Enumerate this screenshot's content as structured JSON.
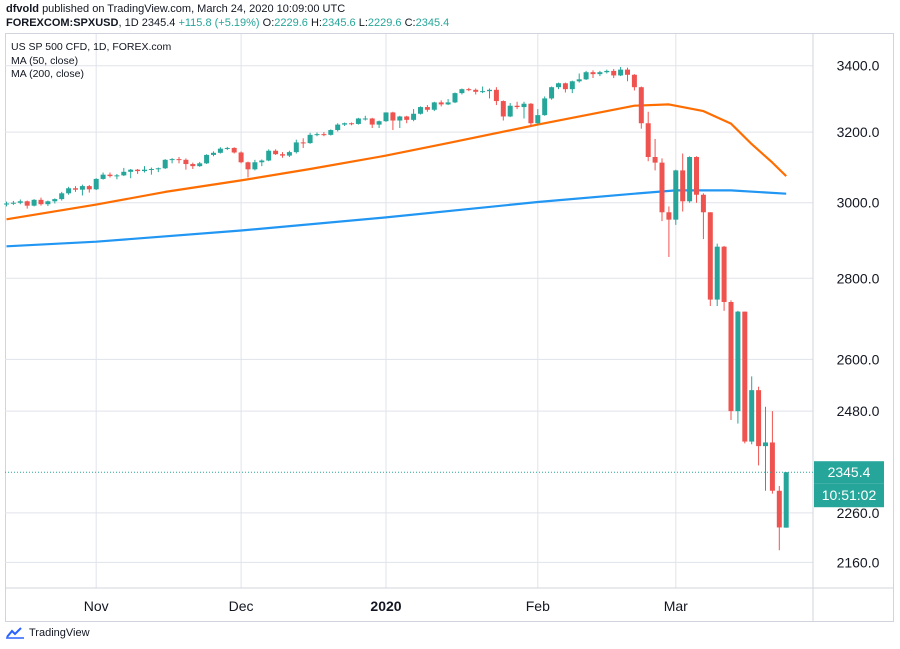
{
  "header": {
    "author": "dfvold",
    "published_text": "published on TradingView.com, March 24, 2020 10:09:00 UTC",
    "symbol": "FOREXCOM:SPXUSD",
    "interval": "1D",
    "last": "2345.4",
    "change": "+115.8 (+5.19%)",
    "open_label": "O:",
    "open": "2229.6",
    "high_label": "H:",
    "high": "2345.6",
    "low_label": "L:",
    "low": "2229.6",
    "close_label": "C:",
    "close": "2345.4"
  },
  "legend": {
    "title": "US SP 500 CFD, 1D, FOREX.com",
    "ma50": "MA (50, close)",
    "ma200": "MA (200, close)"
  },
  "price_tag": "2345.4",
  "countdown_tag": "10:51:02",
  "footer": {
    "brand": "TradingView"
  },
  "colors": {
    "up": "#26a69a",
    "down": "#ef5350",
    "ma50": "#ff6d00",
    "ma200": "#2196f3",
    "grid": "#e0e3eb"
  },
  "chart_data": {
    "type": "candlestick",
    "y_ticks": [
      3400,
      3200,
      3000,
      2800,
      2600,
      2480,
      2260,
      2160
    ],
    "y_tick_labels": [
      "3400.0",
      "3200.0",
      "3000.0",
      "2800.0",
      "2600.0",
      "2480.0",
      "2260.0",
      "2160.0"
    ],
    "y_range": [
      2110,
      3500
    ],
    "y_scale": "log",
    "x_labels": [
      {
        "label": "Nov",
        "date": "2019-11-01"
      },
      {
        "label": "Dec",
        "date": "2019-12-02"
      },
      {
        "label": "2020",
        "date": "2020-01-02"
      },
      {
        "label": "Feb",
        "date": "2020-02-03"
      },
      {
        "label": "Mar",
        "date": "2020-03-02"
      }
    ],
    "candles": [
      {
        "d": "2019-10-15",
        "o": 2996,
        "h": 3003,
        "l": 2990,
        "c": 2998
      },
      {
        "d": "2019-10-16",
        "o": 2998,
        "h": 3005,
        "l": 2994,
        "c": 3000
      },
      {
        "d": "2019-10-17",
        "o": 3000,
        "h": 3009,
        "l": 2996,
        "c": 3004
      },
      {
        "d": "2019-10-18",
        "o": 3004,
        "h": 3006,
        "l": 2984,
        "c": 2992
      },
      {
        "d": "2019-10-21",
        "o": 2992,
        "h": 3010,
        "l": 2990,
        "c": 3008
      },
      {
        "d": "2019-10-22",
        "o": 3008,
        "h": 3014,
        "l": 2992,
        "c": 2996
      },
      {
        "d": "2019-10-23",
        "o": 2996,
        "h": 3006,
        "l": 2991,
        "c": 3004
      },
      {
        "d": "2019-10-24",
        "o": 3004,
        "h": 3012,
        "l": 2998,
        "c": 3010
      },
      {
        "d": "2019-10-25",
        "o": 3010,
        "h": 3030,
        "l": 3006,
        "c": 3026
      },
      {
        "d": "2019-10-28",
        "o": 3026,
        "h": 3044,
        "l": 3022,
        "c": 3040
      },
      {
        "d": "2019-10-29",
        "o": 3040,
        "h": 3046,
        "l": 3030,
        "c": 3036
      },
      {
        "d": "2019-10-30",
        "o": 3036,
        "h": 3050,
        "l": 3020,
        "c": 3046
      },
      {
        "d": "2019-10-31",
        "o": 3046,
        "h": 3049,
        "l": 3028,
        "c": 3037
      },
      {
        "d": "2019-11-01",
        "o": 3037,
        "h": 3068,
        "l": 3035,
        "c": 3066
      },
      {
        "d": "2019-11-04",
        "o": 3066,
        "h": 3084,
        "l": 3064,
        "c": 3078
      },
      {
        "d": "2019-11-05",
        "o": 3078,
        "h": 3084,
        "l": 3070,
        "c": 3074
      },
      {
        "d": "2019-11-06",
        "o": 3074,
        "h": 3080,
        "l": 3065,
        "c": 3076
      },
      {
        "d": "2019-11-07",
        "o": 3076,
        "h": 3097,
        "l": 3074,
        "c": 3086
      },
      {
        "d": "2019-11-08",
        "o": 3086,
        "h": 3094,
        "l": 3068,
        "c": 3092
      },
      {
        "d": "2019-11-11",
        "o": 3092,
        "h": 3094,
        "l": 3080,
        "c": 3088
      },
      {
        "d": "2019-11-12",
        "o": 3088,
        "h": 3102,
        "l": 3084,
        "c": 3092
      },
      {
        "d": "2019-11-13",
        "o": 3092,
        "h": 3098,
        "l": 3078,
        "c": 3094
      },
      {
        "d": "2019-11-14",
        "o": 3094,
        "h": 3098,
        "l": 3085,
        "c": 3096
      },
      {
        "d": "2019-11-15",
        "o": 3096,
        "h": 3122,
        "l": 3094,
        "c": 3120
      },
      {
        "d": "2019-11-18",
        "o": 3120,
        "h": 3125,
        "l": 3110,
        "c": 3122
      },
      {
        "d": "2019-11-19",
        "o": 3122,
        "h": 3128,
        "l": 3110,
        "c": 3120
      },
      {
        "d": "2019-11-20",
        "o": 3120,
        "h": 3124,
        "l": 3092,
        "c": 3108
      },
      {
        "d": "2019-11-21",
        "o": 3108,
        "h": 3112,
        "l": 3094,
        "c": 3102
      },
      {
        "d": "2019-11-22",
        "o": 3102,
        "h": 3114,
        "l": 3100,
        "c": 3110
      },
      {
        "d": "2019-11-25",
        "o": 3110,
        "h": 3136,
        "l": 3108,
        "c": 3134
      },
      {
        "d": "2019-11-26",
        "o": 3134,
        "h": 3144,
        "l": 3130,
        "c": 3140
      },
      {
        "d": "2019-11-27",
        "o": 3140,
        "h": 3156,
        "l": 3138,
        "c": 3152
      },
      {
        "d": "2019-11-28",
        "o": 3152,
        "h": 3157,
        "l": 3148,
        "c": 3154
      },
      {
        "d": "2019-11-29",
        "o": 3154,
        "h": 3156,
        "l": 3138,
        "c": 3141
      },
      {
        "d": "2019-12-02",
        "o": 3141,
        "h": 3144,
        "l": 3110,
        "c": 3113
      },
      {
        "d": "2019-12-03",
        "o": 3113,
        "h": 3115,
        "l": 3070,
        "c": 3093
      },
      {
        "d": "2019-12-04",
        "o": 3093,
        "h": 3120,
        "l": 3090,
        "c": 3113
      },
      {
        "d": "2019-12-05",
        "o": 3113,
        "h": 3121,
        "l": 3102,
        "c": 3118
      },
      {
        "d": "2019-12-06",
        "o": 3118,
        "h": 3150,
        "l": 3116,
        "c": 3146
      },
      {
        "d": "2019-12-09",
        "o": 3146,
        "h": 3150,
        "l": 3134,
        "c": 3136
      },
      {
        "d": "2019-12-10",
        "o": 3136,
        "h": 3142,
        "l": 3126,
        "c": 3132
      },
      {
        "d": "2019-12-11",
        "o": 3132,
        "h": 3146,
        "l": 3128,
        "c": 3142
      },
      {
        "d": "2019-12-12",
        "o": 3142,
        "h": 3178,
        "l": 3138,
        "c": 3170
      },
      {
        "d": "2019-12-13",
        "o": 3170,
        "h": 3182,
        "l": 3154,
        "c": 3168
      },
      {
        "d": "2019-12-16",
        "o": 3168,
        "h": 3198,
        "l": 3166,
        "c": 3192
      },
      {
        "d": "2019-12-17",
        "o": 3192,
        "h": 3199,
        "l": 3188,
        "c": 3194
      },
      {
        "d": "2019-12-18",
        "o": 3194,
        "h": 3200,
        "l": 3188,
        "c": 3192
      },
      {
        "d": "2019-12-19",
        "o": 3192,
        "h": 3208,
        "l": 3190,
        "c": 3206
      },
      {
        "d": "2019-12-20",
        "o": 3206,
        "h": 3226,
        "l": 3202,
        "c": 3222
      },
      {
        "d": "2019-12-23",
        "o": 3222,
        "h": 3228,
        "l": 3218,
        "c": 3226
      },
      {
        "d": "2019-12-24",
        "o": 3226,
        "h": 3228,
        "l": 3220,
        "c": 3224
      },
      {
        "d": "2019-12-26",
        "o": 3224,
        "h": 3242,
        "l": 3222,
        "c": 3240
      },
      {
        "d": "2019-12-27",
        "o": 3240,
        "h": 3248,
        "l": 3234,
        "c": 3240
      },
      {
        "d": "2019-12-30",
        "o": 3240,
        "h": 3242,
        "l": 3212,
        "c": 3222
      },
      {
        "d": "2019-12-31",
        "o": 3222,
        "h": 3234,
        "l": 3212,
        "c": 3232
      },
      {
        "d": "2020-01-02",
        "o": 3232,
        "h": 3258,
        "l": 3230,
        "c": 3258
      },
      {
        "d": "2020-01-03",
        "o": 3258,
        "h": 3260,
        "l": 3206,
        "c": 3234
      },
      {
        "d": "2020-01-06",
        "o": 3234,
        "h": 3248,
        "l": 3212,
        "c": 3246
      },
      {
        "d": "2020-01-07",
        "o": 3246,
        "h": 3248,
        "l": 3226,
        "c": 3236
      },
      {
        "d": "2020-01-08",
        "o": 3236,
        "h": 3268,
        "l": 3232,
        "c": 3254
      },
      {
        "d": "2020-01-09",
        "o": 3254,
        "h": 3276,
        "l": 3252,
        "c": 3274
      },
      {
        "d": "2020-01-10",
        "o": 3274,
        "h": 3280,
        "l": 3260,
        "c": 3266
      },
      {
        "d": "2020-01-13",
        "o": 3266,
        "h": 3290,
        "l": 3262,
        "c": 3288
      },
      {
        "d": "2020-01-14",
        "o": 3288,
        "h": 3294,
        "l": 3276,
        "c": 3282
      },
      {
        "d": "2020-01-15",
        "o": 3282,
        "h": 3298,
        "l": 3280,
        "c": 3288
      },
      {
        "d": "2020-01-16",
        "o": 3288,
        "h": 3318,
        "l": 3286,
        "c": 3316
      },
      {
        "d": "2020-01-17",
        "o": 3316,
        "h": 3330,
        "l": 3312,
        "c": 3328
      },
      {
        "d": "2020-01-20",
        "o": 3328,
        "h": 3332,
        "l": 3322,
        "c": 3326
      },
      {
        "d": "2020-01-21",
        "o": 3326,
        "h": 3330,
        "l": 3312,
        "c": 3320
      },
      {
        "d": "2020-01-22",
        "o": 3320,
        "h": 3336,
        "l": 3316,
        "c": 3322
      },
      {
        "d": "2020-01-23",
        "o": 3322,
        "h": 3330,
        "l": 3300,
        "c": 3326
      },
      {
        "d": "2020-01-24",
        "o": 3326,
        "h": 3334,
        "l": 3280,
        "c": 3292
      },
      {
        "d": "2020-01-27",
        "o": 3292,
        "h": 3294,
        "l": 3234,
        "c": 3246
      },
      {
        "d": "2020-01-28",
        "o": 3246,
        "h": 3286,
        "l": 3244,
        "c": 3278
      },
      {
        "d": "2020-01-29",
        "o": 3278,
        "h": 3290,
        "l": 3268,
        "c": 3274
      },
      {
        "d": "2020-01-30",
        "o": 3274,
        "h": 3290,
        "l": 3240,
        "c": 3284
      },
      {
        "d": "2020-01-31",
        "o": 3284,
        "h": 3286,
        "l": 3216,
        "c": 3226
      },
      {
        "d": "2020-02-03",
        "o": 3226,
        "h": 3268,
        "l": 3222,
        "c": 3250
      },
      {
        "d": "2020-02-04",
        "o": 3250,
        "h": 3306,
        "l": 3248,
        "c": 3300
      },
      {
        "d": "2020-02-05",
        "o": 3300,
        "h": 3336,
        "l": 3296,
        "c": 3334
      },
      {
        "d": "2020-02-06",
        "o": 3334,
        "h": 3348,
        "l": 3328,
        "c": 3346
      },
      {
        "d": "2020-02-07",
        "o": 3346,
        "h": 3348,
        "l": 3318,
        "c": 3328
      },
      {
        "d": "2020-02-10",
        "o": 3328,
        "h": 3354,
        "l": 3316,
        "c": 3352
      },
      {
        "d": "2020-02-11",
        "o": 3352,
        "h": 3376,
        "l": 3348,
        "c": 3358
      },
      {
        "d": "2020-02-12",
        "o": 3358,
        "h": 3384,
        "l": 3356,
        "c": 3380
      },
      {
        "d": "2020-02-13",
        "o": 3380,
        "h": 3386,
        "l": 3362,
        "c": 3374
      },
      {
        "d": "2020-02-14",
        "o": 3374,
        "h": 3384,
        "l": 3368,
        "c": 3380
      },
      {
        "d": "2020-02-17",
        "o": 3380,
        "h": 3388,
        "l": 3376,
        "c": 3384
      },
      {
        "d": "2020-02-18",
        "o": 3384,
        "h": 3390,
        "l": 3362,
        "c": 3370
      },
      {
        "d": "2020-02-19",
        "o": 3370,
        "h": 3396,
        "l": 3368,
        "c": 3388
      },
      {
        "d": "2020-02-20",
        "o": 3388,
        "h": 3394,
        "l": 3352,
        "c": 3372
      },
      {
        "d": "2020-02-21",
        "o": 3372,
        "h": 3374,
        "l": 3324,
        "c": 3334
      },
      {
        "d": "2020-02-24",
        "o": 3334,
        "h": 3336,
        "l": 3210,
        "c": 3226
      },
      {
        "d": "2020-02-25",
        "o": 3226,
        "h": 3260,
        "l": 3116,
        "c": 3128
      },
      {
        "d": "2020-02-26",
        "o": 3128,
        "h": 3180,
        "l": 3090,
        "c": 3112
      },
      {
        "d": "2020-02-27",
        "o": 3112,
        "h": 3124,
        "l": 2950,
        "c": 2974
      },
      {
        "d": "2020-02-28",
        "o": 2974,
        "h": 2990,
        "l": 2855,
        "c": 2954
      },
      {
        "d": "2020-03-02",
        "o": 2954,
        "h": 3092,
        "l": 2940,
        "c": 3090
      },
      {
        "d": "2020-03-03",
        "o": 3090,
        "h": 3138,
        "l": 2976,
        "c": 3004
      },
      {
        "d": "2020-03-04",
        "o": 3004,
        "h": 3130,
        "l": 3000,
        "c": 3128
      },
      {
        "d": "2020-03-05",
        "o": 3128,
        "h": 3130,
        "l": 3000,
        "c": 3022
      },
      {
        "d": "2020-03-06",
        "o": 3022,
        "h": 3026,
        "l": 2902,
        "c": 2974
      },
      {
        "d": "2020-03-09",
        "o": 2974,
        "h": 2974,
        "l": 2730,
        "c": 2746
      },
      {
        "d": "2020-03-10",
        "o": 2746,
        "h": 2890,
        "l": 2730,
        "c": 2882
      },
      {
        "d": "2020-03-11",
        "o": 2882,
        "h": 2884,
        "l": 2718,
        "c": 2740
      },
      {
        "d": "2020-03-12",
        "o": 2740,
        "h": 2744,
        "l": 2460,
        "c": 2480
      },
      {
        "d": "2020-03-13",
        "o": 2480,
        "h": 2718,
        "l": 2452,
        "c": 2716
      },
      {
        "d": "2020-03-16",
        "o": 2716,
        "h": 2716,
        "l": 2408,
        "c": 2412
      },
      {
        "d": "2020-03-17",
        "o": 2412,
        "h": 2560,
        "l": 2406,
        "c": 2528
      },
      {
        "d": "2020-03-18",
        "o": 2528,
        "h": 2536,
        "l": 2360,
        "c": 2402
      },
      {
        "d": "2020-03-19",
        "o": 2402,
        "h": 2490,
        "l": 2306,
        "c": 2410
      },
      {
        "d": "2020-03-20",
        "o": 2410,
        "h": 2480,
        "l": 2300,
        "c": 2306
      },
      {
        "d": "2020-03-23",
        "o": 2306,
        "h": 2316,
        "l": 2184,
        "c": 2230
      },
      {
        "d": "2020-03-24",
        "o": 2229.6,
        "h": 2345.6,
        "l": 2229.6,
        "c": 2345.4
      }
    ],
    "series": [
      {
        "name": "MA (50, close)",
        "values": [
          {
            "d": "2019-10-15",
            "v": 2955
          },
          {
            "d": "2019-11-01",
            "v": 2995
          },
          {
            "d": "2019-11-15",
            "v": 3030
          },
          {
            "d": "2019-12-02",
            "v": 3062
          },
          {
            "d": "2019-12-16",
            "v": 3094
          },
          {
            "d": "2020-01-02",
            "v": 3132
          },
          {
            "d": "2020-01-15",
            "v": 3168
          },
          {
            "d": "2020-02-03",
            "v": 3222
          },
          {
            "d": "2020-02-14",
            "v": 3258
          },
          {
            "d": "2020-02-21",
            "v": 3278
          },
          {
            "d": "2020-02-28",
            "v": 3282
          },
          {
            "d": "2020-03-06",
            "v": 3262
          },
          {
            "d": "2020-03-12",
            "v": 3225
          },
          {
            "d": "2020-03-17",
            "v": 3165
          },
          {
            "d": "2020-03-20",
            "v": 3112
          },
          {
            "d": "2020-03-24",
            "v": 3074
          }
        ]
      },
      {
        "name": "MA (200, close)",
        "values": [
          {
            "d": "2019-10-15",
            "v": 2883
          },
          {
            "d": "2019-11-01",
            "v": 2895
          },
          {
            "d": "2019-12-02",
            "v": 2925
          },
          {
            "d": "2020-01-02",
            "v": 2960
          },
          {
            "d": "2020-02-03",
            "v": 3002
          },
          {
            "d": "2020-02-21",
            "v": 3025
          },
          {
            "d": "2020-03-02",
            "v": 3034
          },
          {
            "d": "2020-03-12",
            "v": 3034
          },
          {
            "d": "2020-03-24",
            "v": 3025
          }
        ]
      }
    ],
    "last_price": 2345.4,
    "grid": true,
    "legend_position": "top-left"
  }
}
